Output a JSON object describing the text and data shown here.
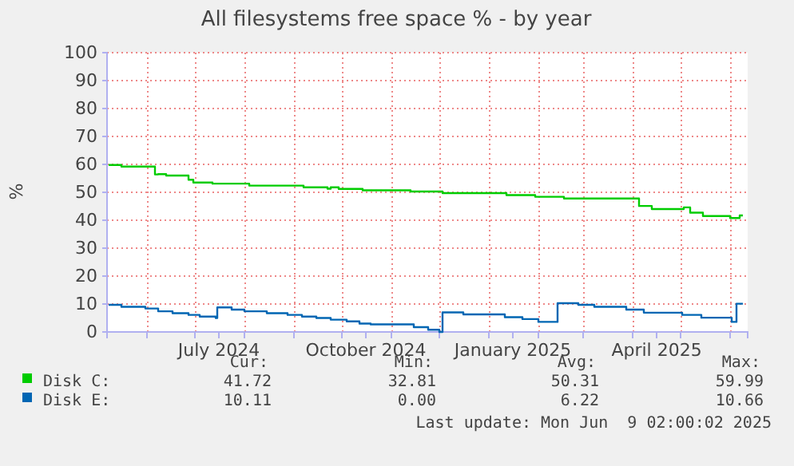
{
  "chart_data": {
    "type": "step",
    "title": "All filesystems free space % - by year",
    "ylabel": "%",
    "xlim": [
      "2024-05-07",
      "2025-06-12"
    ],
    "xticks": [
      {
        "value": "2024-06-01",
        "label": null
      },
      {
        "value": "2024-07-01",
        "label": null
      },
      {
        "value": "2024-07-16",
        "label": "July 2024"
      },
      {
        "value": "2024-08-01",
        "label": null
      },
      {
        "value": "2024-09-01",
        "label": null
      },
      {
        "value": "2024-10-01",
        "label": null
      },
      {
        "value": "2024-10-16",
        "label": "October 2024"
      },
      {
        "value": "2024-11-01",
        "label": null
      },
      {
        "value": "2024-12-01",
        "label": null
      },
      {
        "value": "2025-01-01",
        "label": null
      },
      {
        "value": "2025-01-16",
        "label": "January 2025"
      },
      {
        "value": "2025-02-01",
        "label": null
      },
      {
        "value": "2025-03-01",
        "label": null
      },
      {
        "value": "2025-04-01",
        "label": null
      },
      {
        "value": "2025-04-16",
        "label": "April 2025"
      },
      {
        "value": "2025-05-01",
        "label": null
      },
      {
        "value": "2025-06-01",
        "label": null
      }
    ],
    "ylim": [
      0,
      100
    ],
    "yticks": [
      0,
      10,
      20,
      30,
      40,
      50,
      60,
      70,
      80,
      90,
      100
    ],
    "grid": true,
    "legend": "bottom",
    "series": [
      {
        "name": "Disk C:",
        "color": "#00cc00",
        "x": [
          "2024-05-08",
          "2024-05-16",
          "2024-06-06",
          "2024-06-08",
          "2024-06-13",
          "2024-06-27",
          "2024-06-30",
          "2024-07-12",
          "2024-08-04",
          "2024-09-07",
          "2024-09-22",
          "2024-09-24",
          "2024-09-29",
          "2024-10-14",
          "2024-11-13",
          "2024-12-03",
          "2025-01-12",
          "2025-01-30",
          "2025-02-17",
          "2025-04-05",
          "2025-04-13",
          "2025-05-03",
          "2025-05-07",
          "2025-05-15",
          "2025-06-01",
          "2025-06-07",
          "2025-06-09"
        ],
        "values": [
          59.8,
          59.2,
          56.4,
          56.5,
          56.0,
          54.5,
          53.5,
          53.1,
          52.4,
          51.8,
          51.3,
          51.8,
          51.2,
          50.7,
          50.3,
          49.7,
          49.0,
          48.4,
          47.8,
          45.1,
          44.0,
          44.6,
          42.7,
          41.5,
          40.8,
          41.7,
          41.7
        ]
      },
      {
        "name": "Disk E:",
        "color": "#0066b3",
        "x": [
          "2024-05-08",
          "2024-05-16",
          "2024-05-31",
          "2024-06-08",
          "2024-06-17",
          "2024-06-27",
          "2024-07-04",
          "2024-07-14",
          "2024-07-15",
          "2024-07-24",
          "2024-08-01",
          "2024-08-15",
          "2024-08-28",
          "2024-09-06",
          "2024-09-15",
          "2024-09-24",
          "2024-10-04",
          "2024-10-12",
          "2024-10-19",
          "2024-11-15",
          "2024-11-24",
          "2024-12-01",
          "2024-12-03",
          "2024-12-16",
          "2025-01-11",
          "2025-01-22",
          "2025-02-01",
          "2025-02-13",
          "2025-02-26",
          "2025-03-08",
          "2025-03-28",
          "2025-04-08",
          "2025-05-02",
          "2025-05-14",
          "2025-06-02",
          "2025-06-05",
          "2025-06-09"
        ],
        "values": [
          9.7,
          9.0,
          8.4,
          7.4,
          6.7,
          6.1,
          5.5,
          5.0,
          8.8,
          8.0,
          7.4,
          6.7,
          6.1,
          5.5,
          5.0,
          4.4,
          3.8,
          3.0,
          2.7,
          1.7,
          0.8,
          0.0,
          7.0,
          6.3,
          5.3,
          4.6,
          3.6,
          10.3,
          9.7,
          9.0,
          8.0,
          6.9,
          6.1,
          5.1,
          3.6,
          10.1,
          10.1
        ]
      }
    ],
    "annotations": [
      "Cur:",
      "Min:",
      "Avg:",
      "Max:",
      "41.72",
      "32.81",
      "50.31",
      "59.99",
      "10.11",
      "0.00",
      "6.22",
      "10.66",
      "Last update: Mon Jun  9 02:00:02 2025"
    ]
  }
}
